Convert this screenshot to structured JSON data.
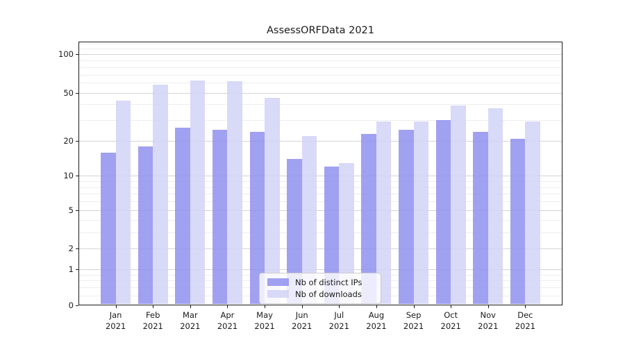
{
  "figure": {
    "background": "#ffffff"
  },
  "chart_data": {
    "type": "bar",
    "title": "AssessORFData 2021",
    "categories": [
      "Jan",
      "Feb",
      "Mar",
      "Apr",
      "May",
      "Jun",
      "Jul",
      "Aug",
      "Sep",
      "Oct",
      "Nov",
      "Dec"
    ],
    "category_year": "2021",
    "series": [
      {
        "name": "Nb of distinct IPs",
        "color": "#9090ee",
        "values": [
          16,
          18,
          26,
          25,
          24,
          14,
          12,
          23,
          25,
          30,
          24,
          21
        ]
      },
      {
        "name": "Nb of downloads",
        "color": "#d2d2f7",
        "values": [
          43,
          58,
          63,
          62,
          45,
          22,
          13,
          29,
          29,
          39,
          37,
          29
        ]
      }
    ],
    "y_axis": {
      "scale": "log-like (log of 1+x), 0 at baseline",
      "major_ticks": [
        0,
        1,
        2,
        5,
        10,
        20,
        50,
        100
      ],
      "minor_gridlines": [
        0.2,
        0.4,
        0.6,
        0.8,
        3,
        4,
        6,
        7,
        8,
        9,
        30,
        40,
        60,
        70,
        80,
        90,
        110,
        120
      ],
      "range": [
        0,
        135
      ]
    },
    "xlabel": "",
    "ylabel": "",
    "grid": true,
    "legend_position": "bottom-center",
    "colors": {
      "major_gridline": "#d4d4d4",
      "minor_gridline": "#ededed",
      "axis_frame": "#1a1a1a",
      "text": "#1a1a1a"
    }
  }
}
